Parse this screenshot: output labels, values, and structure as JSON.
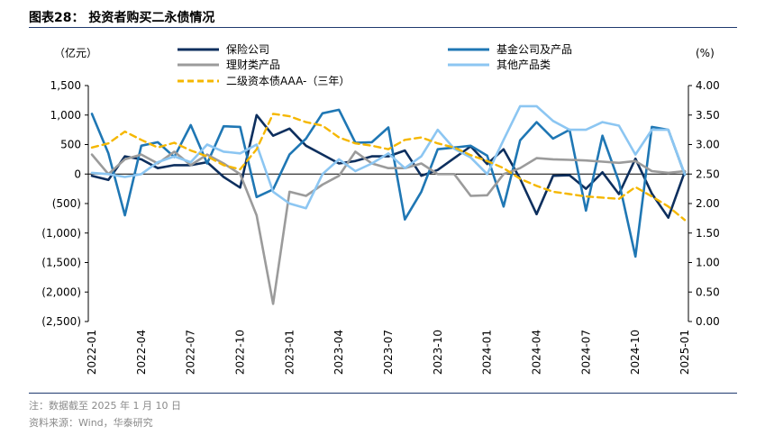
{
  "header": {
    "title": "图表28：  投资者购买二永债情况"
  },
  "footer": {
    "note": "注：数据截至 2025 年 1 月 10 日",
    "source": "资料来源：Wind，华泰研究"
  },
  "chart_data": {
    "type": "line",
    "title": "图表28：  投资者购买二永债情况",
    "y_left_label": "（亿元）",
    "y_right_label": "(%)",
    "y_left_range": [
      -2500,
      1500
    ],
    "y_right_range": [
      0,
      4
    ],
    "y_left_ticks": [
      "1,500",
      "1,000",
      "500",
      "0",
      "(500)",
      "(1,000)",
      "(1,500)",
      "(2,000)",
      "(2,500)"
    ],
    "y_right_ticks": [
      "4.00",
      "3.50",
      "3.00",
      "2.50",
      "2.00",
      "1.50",
      "1.00",
      "0.50",
      "0.00"
    ],
    "x_tick_labels": [
      "2022-01",
      "2022-04",
      "2022-07",
      "2022-10",
      "2023-01",
      "2023-04",
      "2023-07",
      "2023-10",
      "2024-01",
      "2024-04",
      "2024-07",
      "2024-10",
      "2025-01"
    ],
    "x_points": 37,
    "series": [
      {
        "name": "保险公司",
        "axis": "left",
        "color": "#0d2f5e",
        "dash": false,
        "x": [
          0,
          1,
          2,
          3,
          4,
          5,
          6,
          7,
          8,
          9,
          10,
          11,
          12,
          13,
          14,
          15,
          16,
          17,
          18,
          19,
          20,
          21,
          22,
          23,
          24,
          25,
          26,
          27,
          28,
          29,
          30,
          31,
          32,
          33,
          34,
          35,
          36
        ],
        "values": [
          -30,
          -100,
          300,
          250,
          100,
          150,
          150,
          200,
          -50,
          -230,
          1000,
          650,
          770,
          480,
          330,
          180,
          220,
          300,
          300,
          400,
          -30,
          70,
          270,
          470,
          170,
          420,
          -80,
          -680,
          -30,
          -20,
          -250,
          30,
          -340,
          260,
          -330,
          -740,
          40
        ]
      },
      {
        "name": "基金公司及产品",
        "axis": "left",
        "color": "#1f77b4",
        "dash": false,
        "x": [
          0,
          1,
          2,
          3,
          4,
          5,
          6,
          7,
          8,
          9,
          10,
          11,
          12,
          13,
          14,
          15,
          16,
          17,
          18,
          19,
          20,
          21,
          22,
          23,
          24,
          25,
          26,
          27,
          28,
          29,
          30,
          31,
          32,
          33,
          34,
          35,
          36
        ],
        "values": [
          1020,
          350,
          -700,
          480,
          540,
          290,
          830,
          180,
          810,
          800,
          -390,
          -260,
          330,
          600,
          1030,
          1090,
          530,
          540,
          790,
          -770,
          -300,
          420,
          450,
          480,
          310,
          -550,
          570,
          880,
          600,
          750,
          -620,
          650,
          -130,
          -1400,
          800,
          750,
          -10
        ]
      },
      {
        "name": "理财类产品",
        "axis": "left",
        "color": "#9b9b9b",
        "dash": false,
        "x": [
          0,
          1,
          2,
          3,
          4,
          5,
          6,
          7,
          8,
          9,
          10,
          11,
          12,
          13,
          14,
          15,
          16,
          17,
          18,
          19,
          20,
          21,
          22,
          23,
          24,
          25,
          26,
          27,
          28,
          29,
          30,
          31,
          32,
          33,
          34,
          35,
          36
        ],
        "values": [
          330,
          0,
          250,
          330,
          180,
          380,
          150,
          330,
          180,
          0,
          -700,
          -2200,
          -300,
          -370,
          -180,
          -30,
          380,
          180,
          100,
          100,
          180,
          0,
          0,
          -370,
          -360,
          0,
          100,
          270,
          250,
          240,
          230,
          210,
          190,
          220,
          50,
          20,
          50
        ]
      },
      {
        "name": "其他产品类",
        "axis": "left",
        "color": "#8cc6f2",
        "dash": false,
        "x": [
          0,
          1,
          2,
          3,
          4,
          5,
          6,
          7,
          8,
          9,
          10,
          11,
          12,
          13,
          14,
          15,
          16,
          17,
          18,
          19,
          20,
          21,
          22,
          23,
          24,
          25,
          26,
          27,
          28,
          29,
          30,
          31,
          32,
          33,
          34,
          35,
          36
        ],
        "values": [
          20,
          0,
          -50,
          0,
          200,
          300,
          200,
          500,
          380,
          350,
          500,
          -300,
          -500,
          -580,
          0,
          250,
          50,
          180,
          350,
          100,
          300,
          750,
          430,
          280,
          0,
          580,
          1150,
          1150,
          900,
          750,
          750,
          880,
          820,
          330,
          750,
          750,
          0
        ]
      },
      {
        "name": "二级资本债AAA-（三年）",
        "axis": "right",
        "color": "#f5b700",
        "dash": true,
        "x": [
          0,
          1,
          2,
          3,
          4,
          5,
          6,
          7,
          8,
          9,
          10,
          11,
          12,
          13,
          14,
          15,
          16,
          17,
          18,
          19,
          20,
          21,
          22,
          23,
          24,
          25,
          26,
          27,
          28,
          29,
          30,
          31,
          32,
          33,
          34,
          35,
          36
        ],
        "values": [
          2.95,
          3.02,
          3.22,
          3.08,
          2.95,
          3.03,
          2.9,
          2.8,
          2.65,
          2.58,
          2.92,
          3.52,
          3.48,
          3.38,
          3.32,
          3.12,
          3.02,
          2.98,
          2.92,
          3.08,
          3.12,
          3.02,
          2.95,
          2.82,
          2.72,
          2.6,
          2.42,
          2.3,
          2.2,
          2.16,
          2.12,
          2.1,
          2.08,
          2.28,
          2.12,
          1.95,
          1.72
        ]
      }
    ],
    "legend": {
      "placement": "top",
      "entries": [
        "保险公司",
        "基金公司及产品",
        "理财类产品",
        "其他产品类",
        "二级资本债AAA-（三年）"
      ]
    }
  }
}
